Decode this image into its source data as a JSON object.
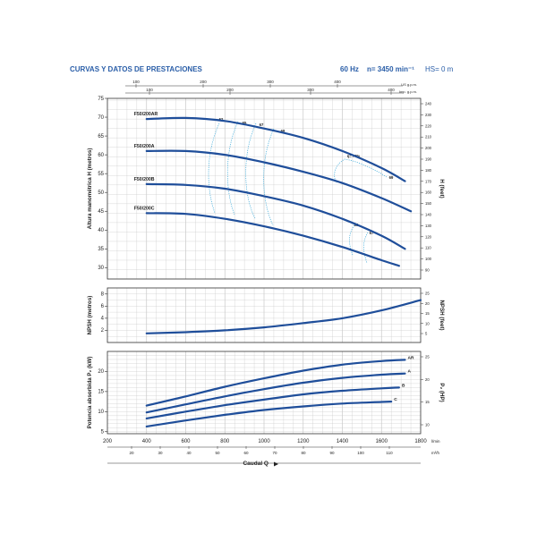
{
  "header": {
    "title": "CURVAS Y DATOS DE PRESTACIONES",
    "freq": "60 Hz",
    "speed": "n= 3450 min⁻¹",
    "hs": "HS= 0 m"
  },
  "colors": {
    "curve": "#1f4e9a",
    "efficiency": "#39a8d8",
    "grid": "#c9c9c9",
    "header": "#2a5ea8",
    "text": "#222222"
  },
  "top_axes": {
    "us_label": "US g.p.m.",
    "us_ticks": [
      "100",
      "200",
      "300",
      "400"
    ],
    "imp_label": "Imp. g.p.m.",
    "imp_ticks": [
      "100",
      "200",
      "300",
      "400"
    ]
  },
  "bottom_axes": {
    "lmin_label": "l/min",
    "lmin_ticks": [
      "200",
      "400",
      "600",
      "800",
      "1000",
      "1200",
      "1400",
      "1600",
      "1800"
    ],
    "m3h_label": "m³/h",
    "m3h_ticks": [
      "20",
      "30",
      "40",
      "50",
      "60",
      "70",
      "80",
      "90",
      "100",
      "110"
    ],
    "xlabel": "Caudal Q"
  },
  "chart_data": [
    {
      "type": "line",
      "panel": "head",
      "ylabel": "Altura manométrica H  (metros)",
      "ylabel_right": "H (feet)",
      "xlim": [
        200,
        1800
      ],
      "ylim": [
        27,
        75
      ],
      "y_ticks": [
        "30",
        "35",
        "40",
        "45",
        "50",
        "55",
        "60",
        "65",
        "70",
        "75"
      ],
      "y_right_ticks": [
        "90",
        "100",
        "110",
        "120",
        "130",
        "140",
        "150",
        "160",
        "170",
        "180",
        "190",
        "200",
        "210",
        "220",
        "230",
        "240"
      ],
      "series": [
        {
          "name": "F50/200AR",
          "x": [
            400,
            600,
            800,
            1000,
            1200,
            1400,
            1600,
            1720
          ],
          "values": [
            69.5,
            69.8,
            69.0,
            67.0,
            64.5,
            61.0,
            56.5,
            53.0
          ]
        },
        {
          "name": "F50/200A",
          "x": [
            400,
            600,
            800,
            1000,
            1200,
            1400,
            1600,
            1750
          ],
          "values": [
            61.0,
            61.0,
            60.0,
            58.0,
            55.5,
            52.5,
            48.5,
            45.0
          ]
        },
        {
          "name": "F50/200B",
          "x": [
            400,
            600,
            800,
            1000,
            1200,
            1400,
            1600,
            1720
          ],
          "values": [
            52.2,
            52.0,
            51.0,
            49.0,
            46.5,
            43.0,
            38.5,
            35.0
          ]
        },
        {
          "name": "F50/200C",
          "x": [
            400,
            600,
            800,
            1000,
            1200,
            1400,
            1600,
            1690
          ],
          "values": [
            44.5,
            44.3,
            43.0,
            41.0,
            38.5,
            35.5,
            32.0,
            30.5
          ]
        }
      ],
      "efficiency_labels": [
        "62",
        "65",
        "67",
        "68",
        "69",
        "η= 70%",
        "68",
        "67"
      ]
    },
    {
      "type": "line",
      "panel": "npsh",
      "ylabel": "NPSH  (metros)",
      "ylabel_right": "NPSH  (feet)",
      "xlim": [
        200,
        1800
      ],
      "ylim": [
        0,
        9
      ],
      "y_ticks": [
        "2",
        "4",
        "6",
        "8"
      ],
      "y_right_ticks": [
        "5",
        "10",
        "15",
        "20",
        "25"
      ],
      "series": [
        {
          "name": "NPSH",
          "x": [
            400,
            600,
            800,
            1000,
            1200,
            1400,
            1600,
            1800
          ],
          "values": [
            1.5,
            1.7,
            2.0,
            2.5,
            3.2,
            4.0,
            5.3,
            7.0
          ]
        }
      ]
    },
    {
      "type": "line",
      "panel": "power",
      "ylabel": "Potencia absorbida P₂ (kW)",
      "ylabel_right": "P₂ (HP)",
      "xlim": [
        200,
        1800
      ],
      "ylim": [
        4.5,
        25
      ],
      "y_ticks": [
        "5",
        "10",
        "15",
        "20"
      ],
      "y_right_ticks": [
        "10",
        "15",
        "20",
        "25"
      ],
      "series": [
        {
          "name": "AR",
          "x": [
            400,
            600,
            800,
            1000,
            1200,
            1400,
            1600,
            1720
          ],
          "values": [
            11.5,
            13.8,
            16.2,
            18.3,
            20.2,
            21.7,
            22.6,
            22.9
          ]
        },
        {
          "name": "A",
          "x": [
            400,
            600,
            800,
            1000,
            1200,
            1400,
            1600,
            1720
          ],
          "values": [
            9.8,
            11.8,
            13.8,
            15.6,
            17.2,
            18.4,
            19.2,
            19.5
          ]
        },
        {
          "name": "B",
          "x": [
            400,
            600,
            800,
            1000,
            1200,
            1400,
            1600,
            1690
          ],
          "values": [
            8.3,
            10.0,
            11.6,
            13.0,
            14.3,
            15.2,
            15.8,
            16.0
          ]
        },
        {
          "name": "C",
          "x": [
            400,
            600,
            800,
            1000,
            1200,
            1400,
            1600,
            1650
          ],
          "values": [
            6.3,
            7.8,
            9.2,
            10.4,
            11.3,
            12.0,
            12.4,
            12.5
          ]
        }
      ]
    }
  ]
}
